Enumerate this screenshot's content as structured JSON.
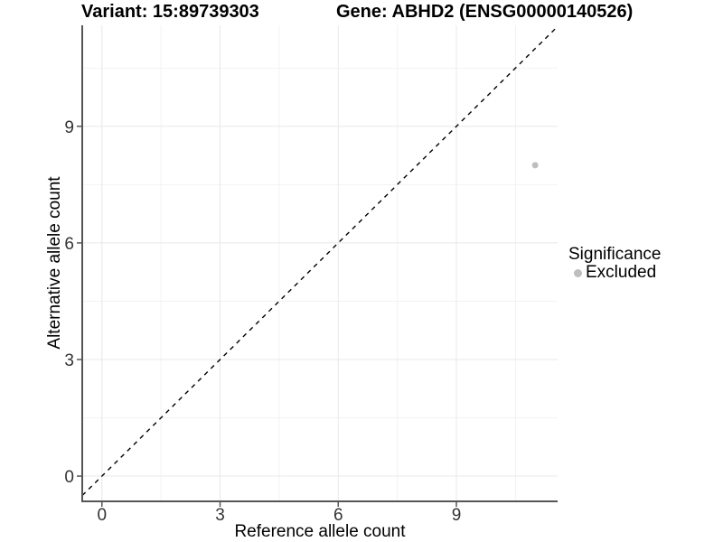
{
  "chart_data": {
    "type": "scatter",
    "title_left": "Variant: 15:89739303",
    "title_right": "Gene: ABHD2 (ENSG00000140526)",
    "xlabel": "Reference allele count",
    "ylabel": "Alternative allele count",
    "xlim": [
      -0.5,
      11.57
    ],
    "ylim": [
      -0.65,
      11.6
    ],
    "x_ticks": [
      0,
      3,
      6,
      9
    ],
    "y_ticks": [
      0,
      3,
      6,
      9
    ],
    "x_minor_gridlines": [
      1.5,
      4.5,
      7.5,
      10.5
    ],
    "y_minor_gridlines": [
      1.5,
      4.5,
      7.5,
      10.5
    ],
    "grid": true,
    "reference_line": {
      "type": "identity y=x",
      "style": "dashed",
      "color": "#000000"
    },
    "series": [
      {
        "name": "Excluded",
        "color": "#bebebe",
        "points": [
          {
            "x": 11,
            "y": 8
          }
        ]
      }
    ],
    "legend": {
      "position": "right",
      "title": "Significance",
      "items": [
        {
          "label": "Excluded",
          "color": "#bebebe"
        }
      ]
    },
    "colors": {
      "point": "#bebebe",
      "axis_line": "#555555",
      "tick_text": "#333333",
      "grid_major": "#e8e8e8",
      "grid_minor": "#f3f3f3",
      "reference_line": "#000000",
      "background": "#ffffff"
    }
  }
}
